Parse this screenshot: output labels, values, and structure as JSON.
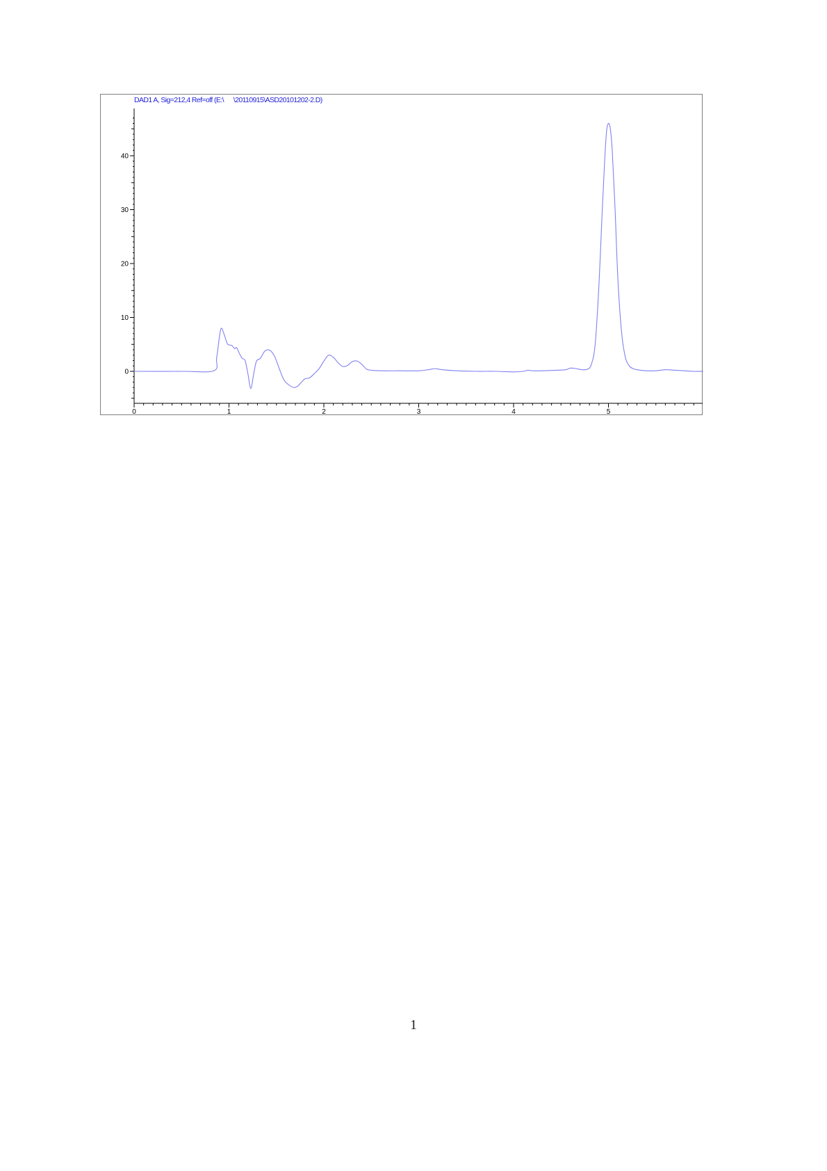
{
  "chart_data": {
    "type": "line",
    "title": "DAD1 A, Sig=212,4 Ref=off (E:\\      \\20110915\\ASD20101202-2.D)",
    "xlabel": "",
    "ylabel": "",
    "xlim": [
      0,
      6
    ],
    "ylim": [
      -6,
      48
    ],
    "x_ticks": [
      "0",
      "1",
      "2",
      "3",
      "4",
      "5"
    ],
    "y_ticks": [
      "0",
      "10",
      "20",
      "30",
      "40"
    ],
    "grid": false,
    "line_color": "#8080f0",
    "series": [
      {
        "x": [
          0,
          0.5,
          0.84,
          0.87,
          0.9,
          0.92,
          0.95,
          0.98,
          1.0,
          1.03,
          1.06,
          1.08,
          1.11,
          1.14,
          1.17,
          1.2,
          1.23,
          1.26,
          1.29,
          1.33,
          1.38,
          1.43,
          1.48,
          1.53,
          1.58,
          1.63,
          1.68,
          1.72,
          1.76,
          1.8,
          1.85,
          1.9,
          1.95,
          2.0,
          2.05,
          2.1,
          2.15,
          2.2,
          2.25,
          2.3,
          2.35,
          2.4,
          2.45,
          2.5,
          2.6,
          2.8,
          3.0,
          3.1,
          3.17,
          3.25,
          3.4,
          3.6,
          3.8,
          4.0,
          4.1,
          4.15,
          4.2,
          4.3,
          4.45,
          4.55,
          4.6,
          4.66,
          4.72,
          4.78,
          4.82,
          4.86,
          4.9,
          4.93,
          4.96,
          4.98,
          5.0,
          5.02,
          5.04,
          5.07,
          5.1,
          5.14,
          5.18,
          5.22,
          5.26,
          5.3,
          5.4,
          5.5,
          5.6,
          5.7,
          5.8,
          5.9,
          6.0
        ],
        "y": [
          0,
          0,
          0.1,
          2.5,
          6.5,
          8.0,
          6.8,
          5.2,
          4.9,
          4.8,
          4.2,
          4.4,
          3.3,
          2.4,
          2.0,
          -0.5,
          -3.2,
          -0.5,
          1.9,
          2.4,
          3.8,
          3.9,
          2.8,
          0.5,
          -1.6,
          -2.5,
          -3.0,
          -2.8,
          -2.1,
          -1.4,
          -1.2,
          -0.4,
          0.5,
          1.9,
          3.0,
          2.6,
          1.6,
          0.9,
          1.1,
          1.8,
          1.9,
          1.3,
          0.4,
          0.2,
          0.1,
          0.1,
          0.1,
          0.3,
          0.5,
          0.3,
          0.1,
          0.0,
          0.0,
          -0.1,
          0.0,
          0.2,
          0.1,
          0.1,
          0.2,
          0.3,
          0.6,
          0.5,
          0.3,
          0.4,
          1.3,
          5.0,
          16.0,
          28.0,
          39.0,
          44.5,
          46.0,
          45.0,
          41.0,
          30.0,
          17.0,
          7.0,
          2.5,
          1.0,
          0.5,
          0.3,
          0.1,
          0.1,
          0.3,
          0.2,
          0.1,
          0.0,
          0.0
        ]
      }
    ]
  },
  "page": {
    "number": "1"
  }
}
